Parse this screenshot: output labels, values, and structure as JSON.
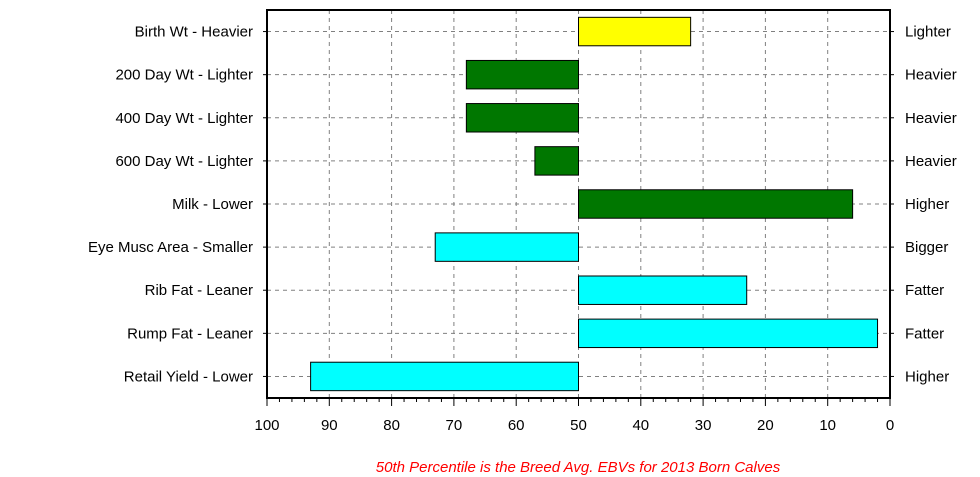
{
  "chart_data": {
    "type": "bar",
    "orientation": "horizontal",
    "categories": [
      "Birth Wt - Heavier",
      "200 Day Wt - Lighter",
      "400 Day Wt - Lighter",
      "600 Day Wt - Lighter",
      "Milk - Lower",
      "Eye Musc Area - Smaller",
      "Rib Fat - Leaner",
      "Rump Fat - Leaner",
      "Retail Yield - Lower"
    ],
    "right_labels": [
      "Lighter",
      "Heavier",
      "Heavier",
      "Heavier",
      "Higher",
      "Bigger",
      "Fatter",
      "Fatter",
      "Higher"
    ],
    "baseline": 50,
    "values": [
      32,
      68,
      68,
      57,
      6,
      73,
      23,
      2,
      93
    ],
    "bar_colors": [
      "#ffff00",
      "#007700",
      "#007700",
      "#007700",
      "#007700",
      "#00ffff",
      "#00ffff",
      "#00ffff",
      "#00ffff"
    ],
    "xlim": [
      100,
      0
    ],
    "x_reversed": true,
    "xticks": [
      100,
      90,
      80,
      70,
      60,
      50,
      40,
      30,
      20,
      10,
      0
    ],
    "grid": true,
    "footnote": "50th Percentile is the Breed Avg. EBVs for 2013 Born Calves",
    "footnote_color": "#ff0000"
  }
}
